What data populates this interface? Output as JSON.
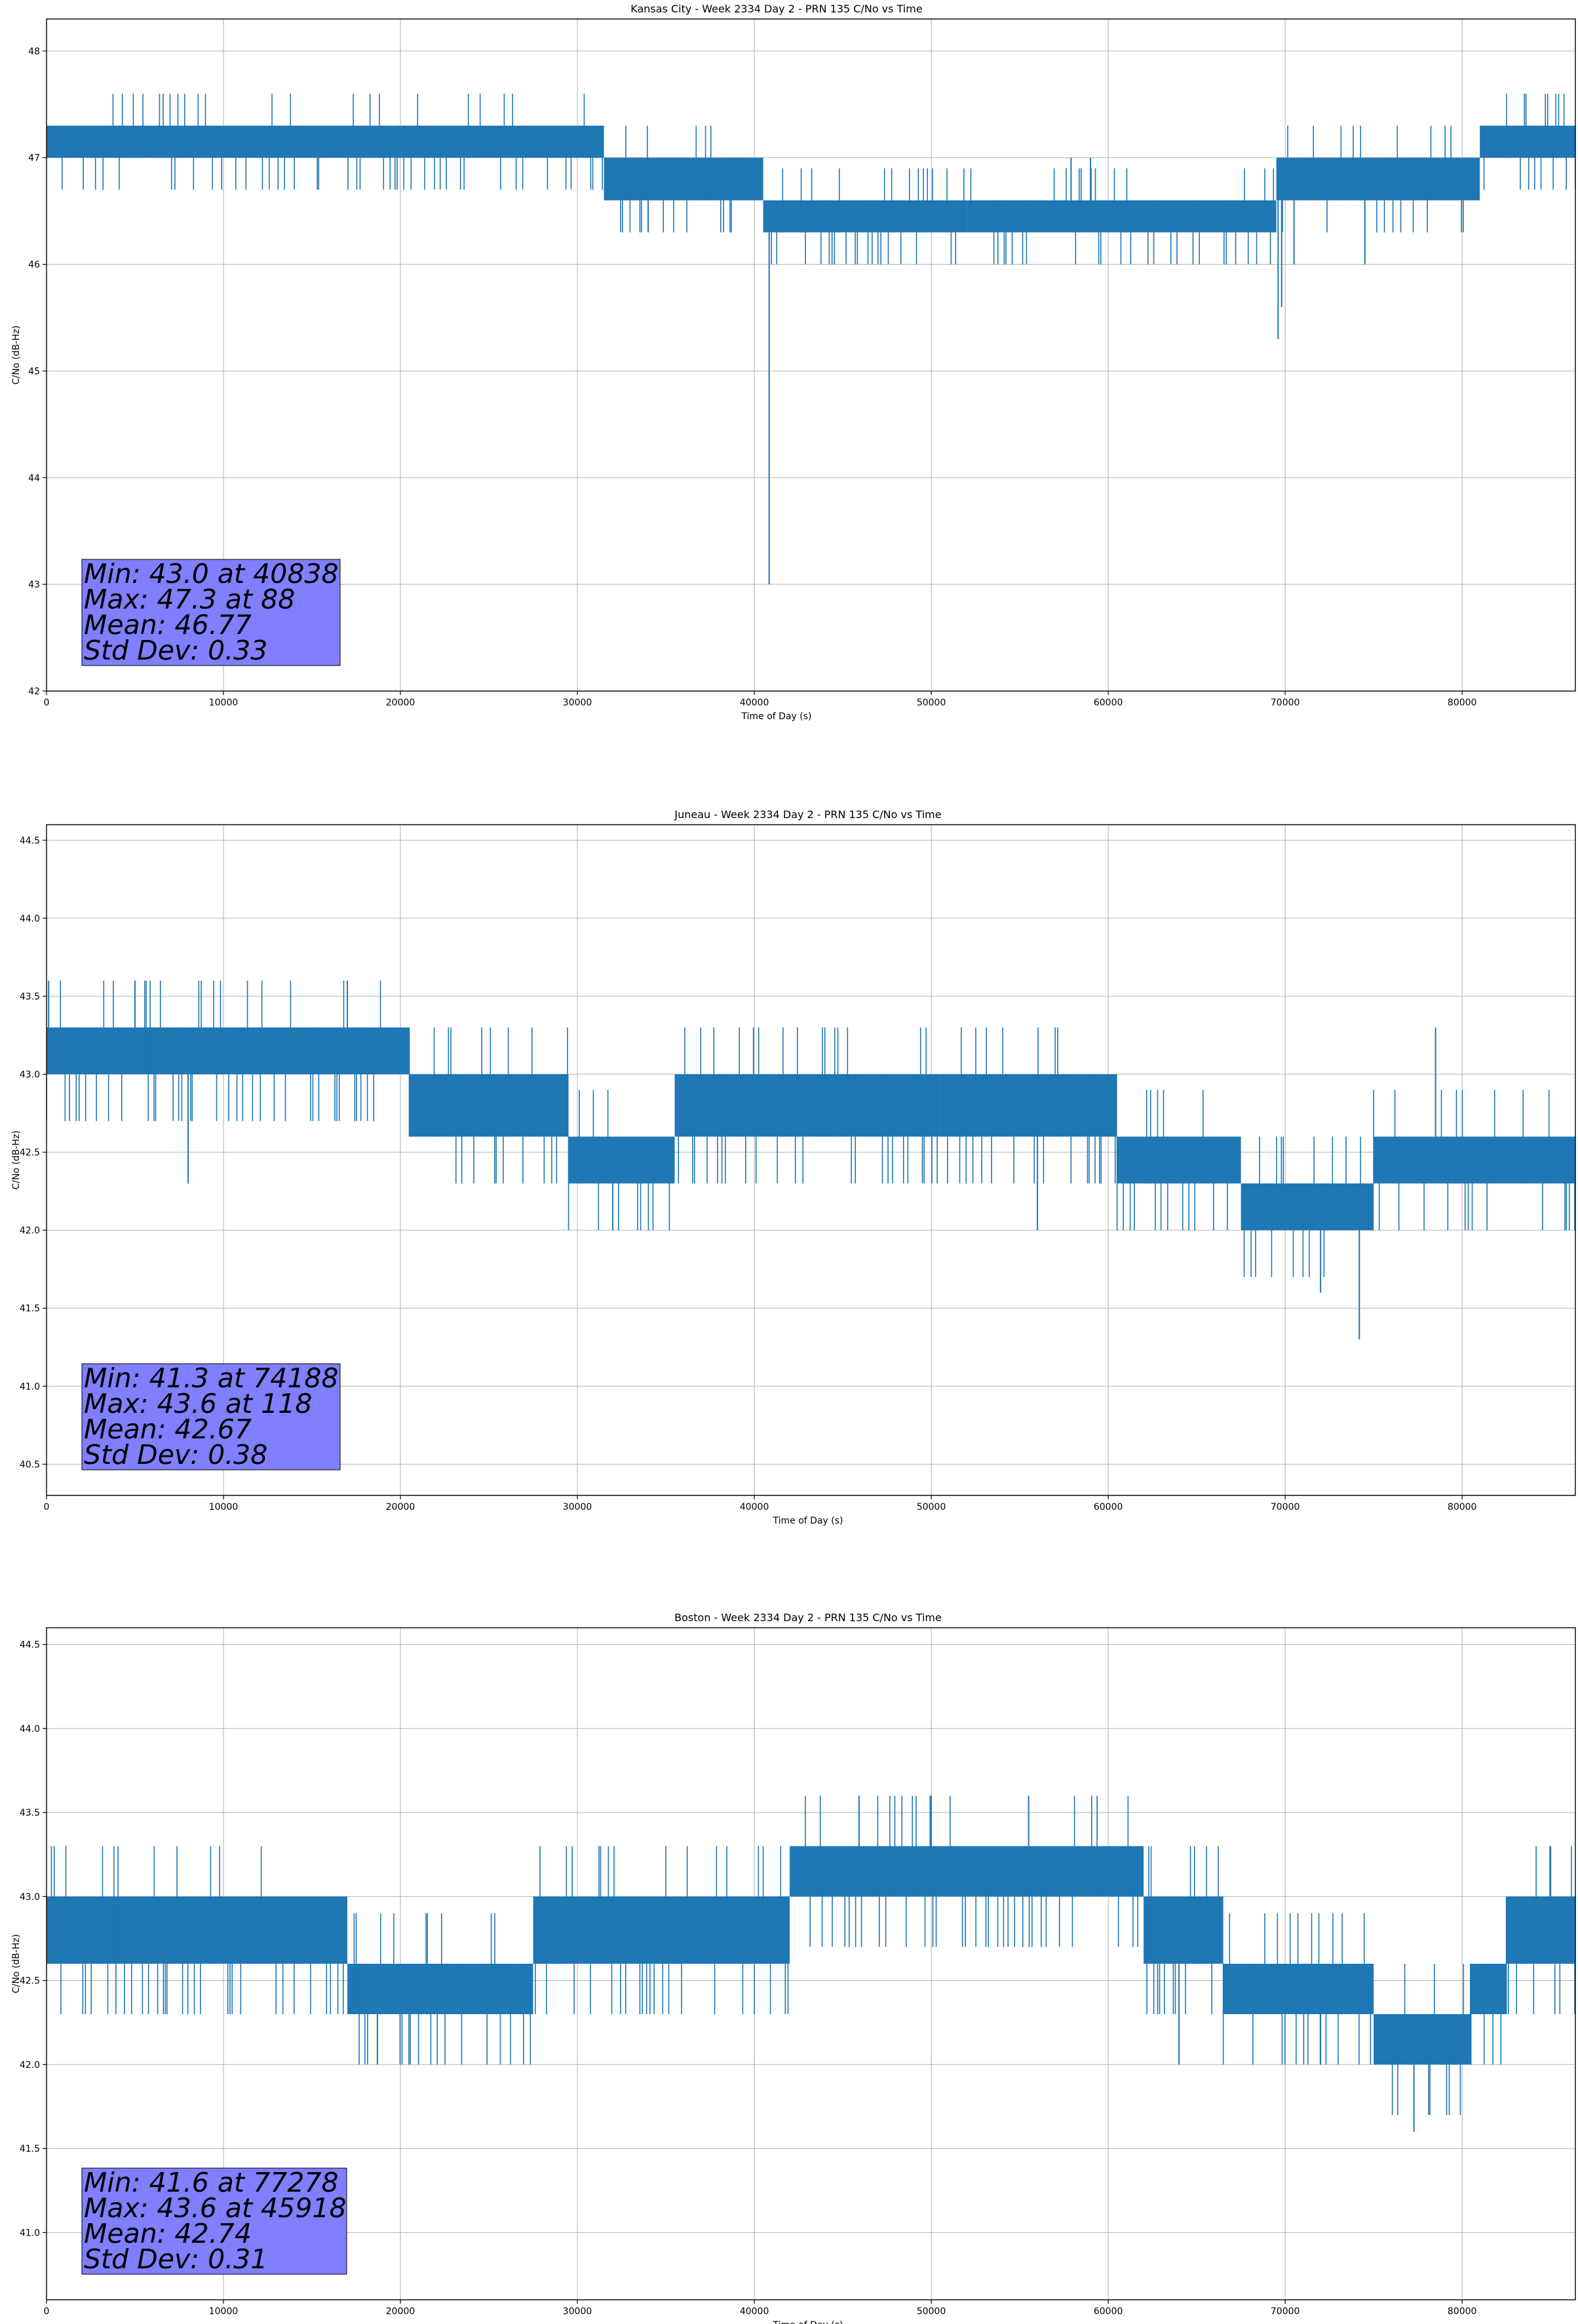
{
  "chart_data": [
    {
      "type": "line",
      "title": "Kansas City - Week 2334 Day 2 - PRN 135 C/No vs Time",
      "xlabel": "Time of Day (s)",
      "ylabel": "C/No (dB-Hz)",
      "xlim": [
        0,
        86400
      ],
      "ylim": [
        42.0,
        48.3
      ],
      "xticks": [
        0,
        10000,
        20000,
        30000,
        40000,
        50000,
        60000,
        70000,
        80000
      ],
      "yticks": [
        42,
        43,
        44,
        45,
        46,
        47,
        48
      ],
      "ytick_labels": [
        "42",
        "43",
        "44",
        "45",
        "46",
        "47",
        "48"
      ],
      "grid": true,
      "series_color": "#1f77b4",
      "bands": [
        {
          "x": [
            0,
            8000
          ],
          "low": 47.0,
          "high": 47.3
        },
        {
          "x": [
            8000,
            20000
          ],
          "low": 47.0,
          "high": 47.3
        },
        {
          "x": [
            20000,
            31500
          ],
          "low": 47.0,
          "high": 47.3
        },
        {
          "x": [
            31500,
            40500
          ],
          "low": 46.6,
          "high": 47.0
        },
        {
          "x": [
            40500,
            52000
          ],
          "low": 46.3,
          "high": 46.6
        },
        {
          "x": [
            52000,
            69500
          ],
          "low": 46.3,
          "high": 46.6
        },
        {
          "x": [
            69500,
            81000
          ],
          "low": 46.6,
          "high": 47.0
        },
        {
          "x": [
            81000,
            86400
          ],
          "low": 47.0,
          "high": 47.3
        }
      ],
      "spikes": [
        {
          "x": 40838,
          "y": 43.0
        },
        {
          "x": 69600,
          "y": 45.3
        },
        {
          "x": 69800,
          "y": 45.6
        },
        {
          "x": 70500,
          "y": 46.0
        },
        {
          "x": 74500,
          "y": 46.0
        },
        {
          "x": 59000,
          "y": 47.0
        },
        {
          "x": 57900,
          "y": 47.0
        },
        {
          "x": 34000,
          "y": 46.3
        }
      ],
      "stats": [
        "Min: 43.0 at 40838",
        "Max: 47.3 at 88",
        "Mean: 46.77",
        "Std Dev: 0.33"
      ]
    },
    {
      "type": "line",
      "title": "Juneau - Week 2334 Day 2 - PRN 135 C/No vs Time",
      "xlabel": "Time of Day (s)",
      "ylabel": "C/No (dB-Hz)",
      "xlim": [
        0,
        86400
      ],
      "ylim": [
        40.3,
        44.6
      ],
      "xticks": [
        0,
        10000,
        20000,
        30000,
        40000,
        50000,
        60000,
        70000,
        80000
      ],
      "yticks": [
        40.5,
        41.0,
        41.5,
        42.0,
        42.5,
        43.0,
        43.5,
        44.0,
        44.5
      ],
      "ytick_labels": [
        "40.5",
        "41.0",
        "41.5",
        "42.0",
        "42.5",
        "43.0",
        "43.5",
        "44.0",
        "44.5"
      ],
      "grid": true,
      "series_color": "#1f77b4",
      "bands": [
        {
          "x": [
            0,
            13500
          ],
          "low": 43.0,
          "high": 43.3
        },
        {
          "x": [
            13500,
            20500
          ],
          "low": 43.0,
          "high": 43.3
        },
        {
          "x": [
            20500,
            29500
          ],
          "low": 42.6,
          "high": 43.0
        },
        {
          "x": [
            29500,
            35500
          ],
          "low": 42.3,
          "high": 42.6
        },
        {
          "x": [
            35500,
            50500
          ],
          "low": 42.6,
          "high": 43.0
        },
        {
          "x": [
            50500,
            60500
          ],
          "low": 42.6,
          "high": 43.0
        },
        {
          "x": [
            60500,
            67500
          ],
          "low": 42.3,
          "high": 42.6
        },
        {
          "x": [
            67500,
            75000
          ],
          "low": 42.0,
          "high": 42.3
        },
        {
          "x": [
            75000,
            86400
          ],
          "low": 42.3,
          "high": 42.6
        }
      ],
      "spikes": [
        {
          "x": 8000,
          "y": 42.3
        },
        {
          "x": 74188,
          "y": 41.3
        },
        {
          "x": 118,
          "y": 43.6
        },
        {
          "x": 5000,
          "y": 43.6
        },
        {
          "x": 17000,
          "y": 43.6
        },
        {
          "x": 72000,
          "y": 41.6
        },
        {
          "x": 78500,
          "y": 43.3
        },
        {
          "x": 32000,
          "y": 42.0
        },
        {
          "x": 56000,
          "y": 42.0
        }
      ],
      "stats": [
        "Min: 41.3 at 74188",
        "Max: 43.6 at 118",
        "Mean: 42.67",
        "Std Dev: 0.38"
      ]
    },
    {
      "type": "line",
      "title": "Boston - Week 2334 Day 2 - PRN 135 C/No vs Time",
      "xlabel": "Time of Day (s)",
      "ylabel": "C/No (dB-Hz)",
      "xlim": [
        0,
        86400
      ],
      "ylim": [
        40.6,
        44.6
      ],
      "xticks": [
        0,
        10000,
        20000,
        30000,
        40000,
        50000,
        60000,
        70000,
        80000
      ],
      "yticks": [
        41.0,
        41.5,
        42.0,
        42.5,
        43.0,
        43.5,
        44.0,
        44.5
      ],
      "ytick_labels": [
        "41.0",
        "41.5",
        "42.0",
        "42.5",
        "43.0",
        "43.5",
        "44.0",
        "44.5"
      ],
      "grid": true,
      "series_color": "#1f77b4",
      "bands": [
        {
          "x": [
            0,
            17000
          ],
          "low": 42.6,
          "high": 43.0
        },
        {
          "x": [
            17000,
            27500
          ],
          "low": 42.3,
          "high": 42.6
        },
        {
          "x": [
            27500,
            42000
          ],
          "low": 42.6,
          "high": 43.0
        },
        {
          "x": [
            42000,
            62000
          ],
          "low": 43.0,
          "high": 43.3
        },
        {
          "x": [
            62000,
            66500
          ],
          "low": 42.6,
          "high": 43.0
        },
        {
          "x": [
            66500,
            75000
          ],
          "low": 42.3,
          "high": 42.6
        },
        {
          "x": [
            75000,
            80500
          ],
          "low": 42.0,
          "high": 42.3
        },
        {
          "x": [
            80500,
            82500
          ],
          "low": 42.3,
          "high": 42.6
        },
        {
          "x": [
            82500,
            86400
          ],
          "low": 42.6,
          "high": 43.0
        }
      ],
      "spikes": [
        {
          "x": 18700,
          "y": 42.0
        },
        {
          "x": 77278,
          "y": 41.6
        },
        {
          "x": 45918,
          "y": 43.6
        },
        {
          "x": 50000,
          "y": 43.6
        },
        {
          "x": 55500,
          "y": 43.6
        },
        {
          "x": 85000,
          "y": 43.3
        },
        {
          "x": 72000,
          "y": 42.0
        },
        {
          "x": 64000,
          "y": 42.0
        }
      ],
      "stats": [
        "Min: 41.6 at 77278",
        "Max: 43.6 at 45918",
        "Mean: 42.74",
        "Std Dev: 0.31"
      ]
    }
  ]
}
